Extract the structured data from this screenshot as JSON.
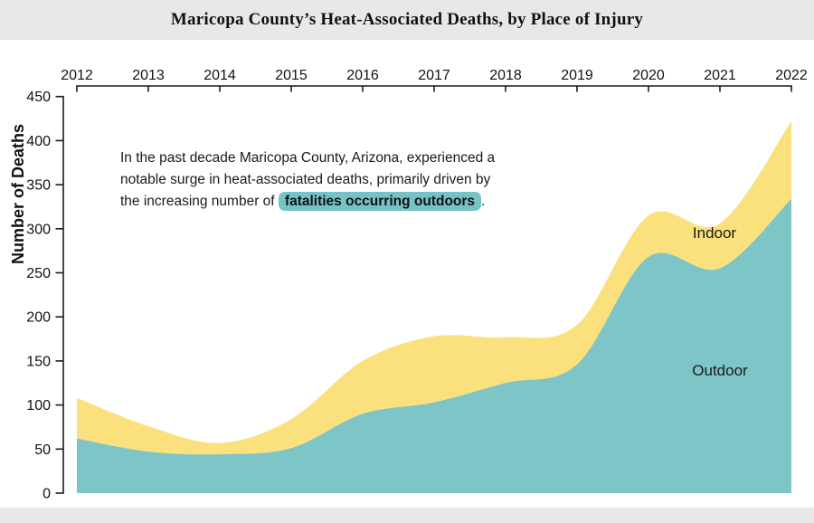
{
  "title": "Maricopa County’s Heat-Associated Deaths, by Place of Injury",
  "annotation": {
    "line1": "In the past decade Maricopa County, Arizona, experienced a",
    "line2": "notable surge in heat-associated deaths, primarily driven by",
    "line3_prefix": "the increasing number of ",
    "line3_highlight": "fatalities occurring outdoors",
    "line3_suffix": "."
  },
  "chart_data": {
    "type": "area",
    "stacked": true,
    "smoothed": true,
    "title": "Maricopa County’s Heat-Associated Deaths, by Place of Injury",
    "categories": [
      "2012",
      "2013",
      "2014",
      "2015",
      "2016",
      "2017",
      "2018",
      "2019",
      "2020",
      "2021",
      "2022"
    ],
    "series": [
      {
        "name": "Outdoor",
        "color": "#7EC5C8",
        "values": [
          62,
          47,
          44,
          51,
          90,
          103,
          125,
          146,
          268,
          255,
          334
        ]
      },
      {
        "name": "Indoor",
        "color": "#FAE17D",
        "values": [
          46,
          29,
          13,
          33,
          60,
          75,
          52,
          45,
          47,
          51,
          88
        ]
      }
    ],
    "totals": [
      108,
      76,
      57,
      84,
      150,
      178,
      177,
      191,
      315,
      306,
      422
    ],
    "xlabel": "",
    "ylabel": "Number of Deaths",
    "ylim": [
      0,
      450
    ],
    "ytick_step": 50,
    "x_axis_position": "top",
    "grid": false,
    "legend_position": "inline-labels-on-areas"
  },
  "colors": {
    "header_bg": "#e8e8e8",
    "footer_bg": "#e8e8e8",
    "outdoor": "#7EC5C8",
    "indoor": "#FAE17D",
    "highlight": "#76C2C6",
    "axis": "#1a1a1a",
    "text": "#1a1a1a"
  }
}
